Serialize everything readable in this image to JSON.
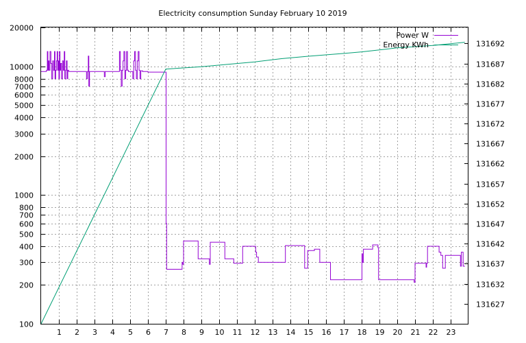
{
  "chart_data": {
    "type": "line",
    "title": "Electricity consumption Sunday February 10 2019",
    "xlabel": "",
    "ylabel": "",
    "xlim": [
      0,
      24
    ],
    "x_ticks": [
      1,
      2,
      3,
      4,
      5,
      6,
      7,
      8,
      9,
      10,
      11,
      12,
      13,
      14,
      15,
      16,
      17,
      18,
      19,
      20,
      21,
      22,
      23
    ],
    "y_left": {
      "scale": "log",
      "lim": [
        100,
        20000
      ],
      "ticks": [
        100,
        200,
        300,
        400,
        500,
        600,
        700,
        800,
        1000,
        2000,
        3000,
        4000,
        5000,
        6000,
        7000,
        8000,
        10000,
        20000
      ]
    },
    "y_right": {
      "scale": "linear",
      "lim": [
        131622,
        131696
      ],
      "ticks": [
        131627,
        131632,
        131637,
        131642,
        131647,
        131652,
        131657,
        131662,
        131667,
        131672,
        131677,
        131682,
        131687,
        131692
      ]
    },
    "grid": true,
    "legend": {
      "placement": "top-right"
    },
    "series": [
      {
        "name": "Power W",
        "axis": "left",
        "color": "#9400d3",
        "step": true,
        "points": [
          [
            0,
            9100
          ],
          [
            0.25,
            9100
          ],
          [
            0.3,
            9300
          ],
          [
            0.35,
            13000
          ],
          [
            0.38,
            9300
          ],
          [
            0.42,
            11000
          ],
          [
            0.45,
            9300
          ],
          [
            0.5,
            13000
          ],
          [
            0.55,
            10500
          ],
          [
            0.6,
            8000
          ],
          [
            0.65,
            11000
          ],
          [
            0.7,
            9300
          ],
          [
            0.75,
            13000
          ],
          [
            0.78,
            8000
          ],
          [
            0.82,
            9300
          ],
          [
            0.86,
            11000
          ],
          [
            0.9,
            13000
          ],
          [
            0.93,
            9300
          ],
          [
            0.96,
            11000
          ],
          [
            1.0,
            8000
          ],
          [
            1.03,
            13000
          ],
          [
            1.06,
            9300
          ],
          [
            1.1,
            10500
          ],
          [
            1.15,
            8000
          ],
          [
            1.2,
            11000
          ],
          [
            1.25,
            9300
          ],
          [
            1.3,
            13000
          ],
          [
            1.33,
            8000
          ],
          [
            1.38,
            9300
          ],
          [
            1.42,
            11000
          ],
          [
            1.46,
            8000
          ],
          [
            1.5,
            9300
          ],
          [
            1.55,
            9100
          ],
          [
            2.5,
            9100
          ],
          [
            2.55,
            8000
          ],
          [
            2.6,
            9100
          ],
          [
            2.65,
            12000
          ],
          [
            2.68,
            7000
          ],
          [
            2.72,
            9100
          ],
          [
            3.5,
            9100
          ],
          [
            3.55,
            8300
          ],
          [
            3.6,
            9100
          ],
          [
            4.3,
            9100
          ],
          [
            4.4,
            13000
          ],
          [
            4.45,
            9300
          ],
          [
            4.5,
            7000
          ],
          [
            4.55,
            9300
          ],
          [
            4.6,
            11000
          ],
          [
            4.65,
            13000
          ],
          [
            4.7,
            8000
          ],
          [
            4.75,
            9300
          ],
          [
            4.8,
            13000
          ],
          [
            4.85,
            9300
          ],
          [
            4.9,
            9100
          ],
          [
            5.1,
            9100
          ],
          [
            5.15,
            8000
          ],
          [
            5.2,
            11000
          ],
          [
            5.25,
            13000
          ],
          [
            5.3,
            9300
          ],
          [
            5.35,
            8000
          ],
          [
            5.4,
            11000
          ],
          [
            5.45,
            13000
          ],
          [
            5.5,
            9300
          ],
          [
            5.55,
            8000
          ],
          [
            5.6,
            9200
          ],
          [
            5.7,
            9100
          ],
          [
            6.0,
            9000
          ],
          [
            6.5,
            9000
          ],
          [
            7.0,
            9000
          ],
          [
            7.02,
            600
          ],
          [
            7.05,
            265
          ],
          [
            7.5,
            265
          ],
          [
            7.9,
            265
          ],
          [
            7.92,
            300
          ],
          [
            7.95,
            290
          ],
          [
            8.0,
            440
          ],
          [
            8.4,
            440
          ],
          [
            8.8,
            440
          ],
          [
            8.82,
            320
          ],
          [
            9.2,
            320
          ],
          [
            9.4,
            320
          ],
          [
            9.45,
            290
          ],
          [
            9.5,
            430
          ],
          [
            10.3,
            430
          ],
          [
            10.32,
            320
          ],
          [
            10.8,
            320
          ],
          [
            10.82,
            295
          ],
          [
            11.3,
            295
          ],
          [
            11.32,
            400
          ],
          [
            12.0,
            400
          ],
          [
            12.05,
            360
          ],
          [
            12.1,
            330
          ],
          [
            12.2,
            300
          ],
          [
            13.5,
            300
          ],
          [
            13.7,
            300
          ],
          [
            13.72,
            405
          ],
          [
            14.5,
            405
          ],
          [
            14.75,
            405
          ],
          [
            14.8,
            270
          ],
          [
            14.95,
            270
          ],
          [
            14.97,
            370
          ],
          [
            15.3,
            370
          ],
          [
            15.35,
            380
          ],
          [
            15.6,
            380
          ],
          [
            15.65,
            300
          ],
          [
            16.2,
            300
          ],
          [
            16.25,
            220
          ],
          [
            18.0,
            220
          ],
          [
            18.02,
            350
          ],
          [
            18.05,
            300
          ],
          [
            18.1,
            380
          ],
          [
            18.6,
            380
          ],
          [
            18.62,
            410
          ],
          [
            18.9,
            410
          ],
          [
            18.92,
            390
          ],
          [
            18.95,
            220
          ],
          [
            20.9,
            220
          ],
          [
            20.95,
            210
          ],
          [
            21.0,
            295
          ],
          [
            21.6,
            295
          ],
          [
            21.62,
            275
          ],
          [
            21.65,
            295
          ],
          [
            21.7,
            400
          ],
          [
            22.3,
            400
          ],
          [
            22.35,
            360
          ],
          [
            22.45,
            340
          ],
          [
            22.55,
            270
          ],
          [
            22.65,
            270
          ],
          [
            22.7,
            340
          ],
          [
            23.5,
            340
          ],
          [
            23.55,
            280
          ],
          [
            23.6,
            360
          ],
          [
            23.7,
            280
          ],
          [
            23.8,
            280
          ]
        ]
      },
      {
        "name": "Energy KWh",
        "axis": "right",
        "color": "#009e73",
        "step": false,
        "points": [
          [
            0,
            131622
          ],
          [
            7.0,
            131685.6
          ],
          [
            9,
            131686.2
          ],
          [
            12,
            131687.4
          ],
          [
            13.5,
            131688.2
          ],
          [
            15,
            131688.8
          ],
          [
            17,
            131689.5
          ],
          [
            18,
            131689.9
          ],
          [
            19,
            131690.4
          ],
          [
            20,
            131690.9
          ],
          [
            22,
            131691.5
          ],
          [
            23.8,
            131692.3
          ]
        ]
      }
    ]
  }
}
